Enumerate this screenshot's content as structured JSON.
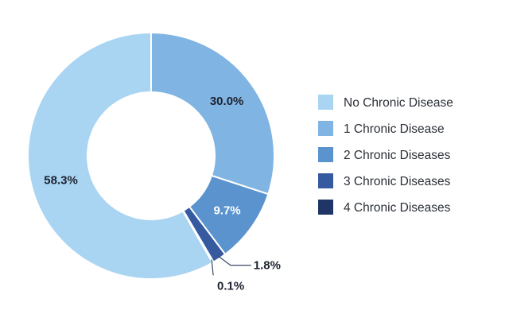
{
  "chart_data": {
    "type": "pie",
    "title": "",
    "categories": [
      "No Chronic Disease",
      "1 Chronic Disease",
      "2 Chronic Diseases",
      "3 Chronic Diseases",
      "4 Chronic Diseases"
    ],
    "values": [
      58.3,
      30.0,
      9.7,
      1.8,
      0.1
    ],
    "value_labels": [
      "58.3%",
      "30.0%",
      "9.7%",
      "1.8%",
      "0.1%"
    ],
    "colors": [
      "#a9d4f2",
      "#80b4e2",
      "#5b93cf",
      "#355a9f",
      "#1f3566"
    ],
    "label_colors": [
      "#1d2230",
      "#1d2230",
      "#ffffff",
      "#1d2230",
      "#1d2230"
    ],
    "donut": true,
    "legend_position": "right"
  }
}
